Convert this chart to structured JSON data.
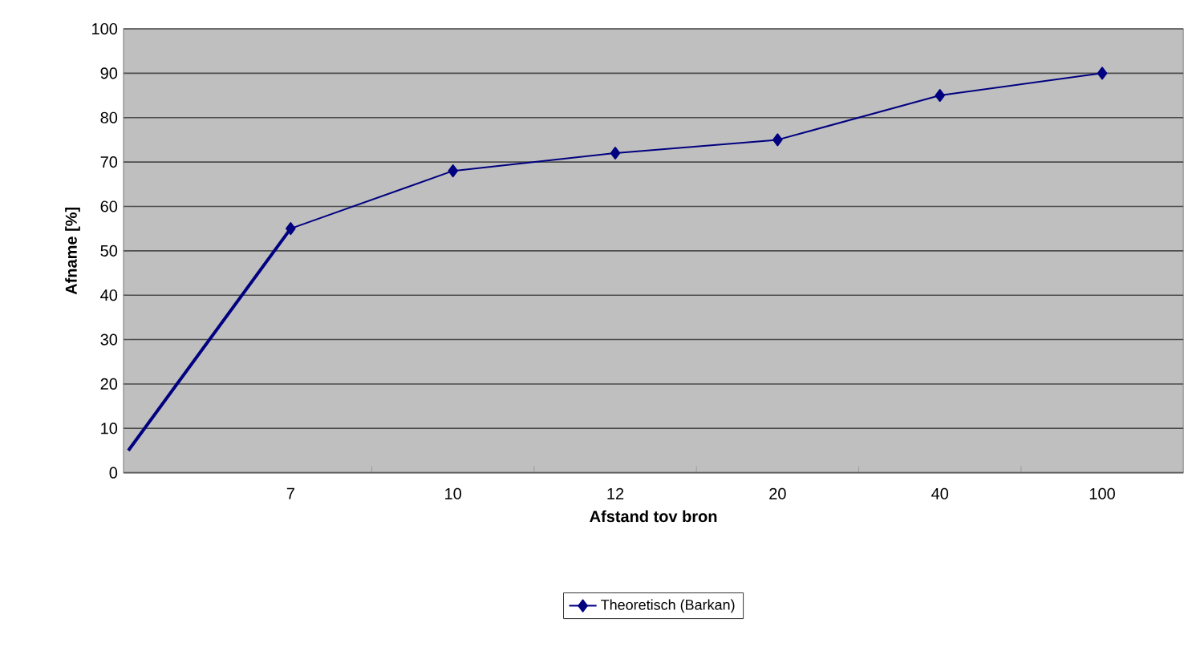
{
  "chart_data": {
    "type": "line",
    "xlabel": "Afstand tov bron",
    "ylabel": "Afname [%]",
    "categories": [
      null,
      "7",
      "10",
      "12",
      "20",
      "40",
      "100"
    ],
    "series": [
      {
        "name": "Theoretisch (Barkan)",
        "color": "#000080",
        "values": [
          null,
          55,
          68,
          72,
          75,
          85,
          90
        ],
        "marker": "diamond"
      },
      {
        "type": "line",
        "color": "#000080",
        "values": [
          5,
          55,
          null,
          null,
          null,
          null,
          null
        ],
        "marker": "none"
      }
    ],
    "ylim": [
      0,
      100
    ],
    "yticks": [
      0,
      10,
      20,
      30,
      40,
      50,
      60,
      70,
      80,
      90,
      100
    ],
    "grid": "y",
    "legend": "bottom",
    "line_style": "solid"
  }
}
